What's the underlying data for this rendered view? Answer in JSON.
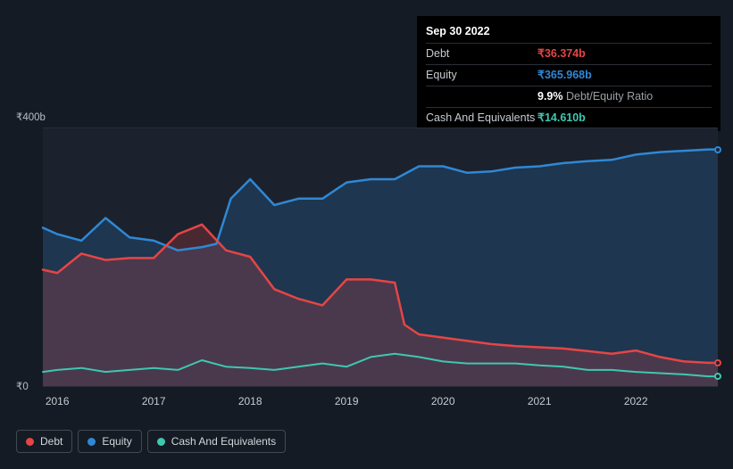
{
  "tooltip": {
    "date": "Sep 30 2022",
    "rows": [
      {
        "label": "Debt",
        "value": "₹36.374b",
        "color": "#e64545"
      },
      {
        "label": "Equity",
        "value": "₹365.968b",
        "color": "#2f88d6"
      },
      {
        "label": "",
        "value": "9.9%",
        "sub": " Debt/Equity Ratio",
        "color": "#ffffff"
      },
      {
        "label": "Cash And Equivalents",
        "value": "₹14.610b",
        "color": "#3fc7b0"
      }
    ]
  },
  "chart": {
    "type": "area",
    "background_color": "#1b222d",
    "grid_color": "#262d38",
    "ylim": [
      0,
      400
    ],
    "yticks": [
      {
        "v": 400,
        "label": "₹400b"
      },
      {
        "v": 0,
        "label": "₹0"
      }
    ],
    "x_years": [
      2016,
      2017,
      2018,
      2019,
      2020,
      2021,
      2022
    ],
    "x_range": [
      2015.85,
      2022.85
    ],
    "series": {
      "debt": {
        "color": "#e64545",
        "fill_opacity": 0.22,
        "pts": [
          [
            2015.85,
            180
          ],
          [
            2016.0,
            175
          ],
          [
            2016.25,
            205
          ],
          [
            2016.5,
            195
          ],
          [
            2016.75,
            198
          ],
          [
            2017.0,
            198
          ],
          [
            2017.25,
            235
          ],
          [
            2017.5,
            250
          ],
          [
            2017.75,
            210
          ],
          [
            2018.0,
            200
          ],
          [
            2018.25,
            150
          ],
          [
            2018.5,
            135
          ],
          [
            2018.75,
            125
          ],
          [
            2019.0,
            165
          ],
          [
            2019.25,
            165
          ],
          [
            2019.5,
            160
          ],
          [
            2019.6,
            95
          ],
          [
            2019.75,
            80
          ],
          [
            2020.0,
            75
          ],
          [
            2020.25,
            70
          ],
          [
            2020.5,
            65
          ],
          [
            2020.75,
            62
          ],
          [
            2021.0,
            60
          ],
          [
            2021.25,
            58
          ],
          [
            2021.5,
            54
          ],
          [
            2021.75,
            50
          ],
          [
            2022.0,
            55
          ],
          [
            2022.25,
            45
          ],
          [
            2022.5,
            38
          ],
          [
            2022.75,
            36
          ],
          [
            2022.85,
            36
          ]
        ]
      },
      "equity": {
        "color": "#2f88d6",
        "fill_opacity": 0.2,
        "pts": [
          [
            2015.85,
            245
          ],
          [
            2016.0,
            235
          ],
          [
            2016.25,
            225
          ],
          [
            2016.5,
            260
          ],
          [
            2016.75,
            230
          ],
          [
            2017.0,
            225
          ],
          [
            2017.25,
            210
          ],
          [
            2017.5,
            215
          ],
          [
            2017.65,
            220
          ],
          [
            2017.8,
            290
          ],
          [
            2018.0,
            320
          ],
          [
            2018.25,
            280
          ],
          [
            2018.5,
            290
          ],
          [
            2018.75,
            290
          ],
          [
            2019.0,
            315
          ],
          [
            2019.25,
            320
          ],
          [
            2019.5,
            320
          ],
          [
            2019.75,
            340
          ],
          [
            2020.0,
            340
          ],
          [
            2020.25,
            330
          ],
          [
            2020.5,
            332
          ],
          [
            2020.75,
            338
          ],
          [
            2021.0,
            340
          ],
          [
            2021.25,
            345
          ],
          [
            2021.5,
            348
          ],
          [
            2021.75,
            350
          ],
          [
            2022.0,
            358
          ],
          [
            2022.25,
            362
          ],
          [
            2022.5,
            364
          ],
          [
            2022.75,
            366
          ],
          [
            2022.85,
            366
          ]
        ]
      },
      "cash": {
        "color": "#3fc7b0",
        "fill_opacity": 0.0,
        "pts": [
          [
            2015.85,
            22
          ],
          [
            2016.0,
            25
          ],
          [
            2016.25,
            28
          ],
          [
            2016.5,
            22
          ],
          [
            2016.75,
            25
          ],
          [
            2017.0,
            28
          ],
          [
            2017.25,
            25
          ],
          [
            2017.5,
            40
          ],
          [
            2017.75,
            30
          ],
          [
            2018.0,
            28
          ],
          [
            2018.25,
            25
          ],
          [
            2018.5,
            30
          ],
          [
            2018.75,
            35
          ],
          [
            2019.0,
            30
          ],
          [
            2019.25,
            45
          ],
          [
            2019.5,
            50
          ],
          [
            2019.75,
            45
          ],
          [
            2020.0,
            38
          ],
          [
            2020.25,
            35
          ],
          [
            2020.5,
            35
          ],
          [
            2020.75,
            35
          ],
          [
            2021.0,
            32
          ],
          [
            2021.25,
            30
          ],
          [
            2021.5,
            25
          ],
          [
            2021.75,
            25
          ],
          [
            2022.0,
            22
          ],
          [
            2022.25,
            20
          ],
          [
            2022.5,
            18
          ],
          [
            2022.75,
            15
          ],
          [
            2022.85,
            15
          ]
        ]
      }
    },
    "x_guide": 2022.85
  },
  "legend": [
    {
      "label": "Debt",
      "color": "#e64545"
    },
    {
      "label": "Equity",
      "color": "#2f88d6"
    },
    {
      "label": "Cash And Equivalents",
      "color": "#3fc7b0"
    }
  ]
}
